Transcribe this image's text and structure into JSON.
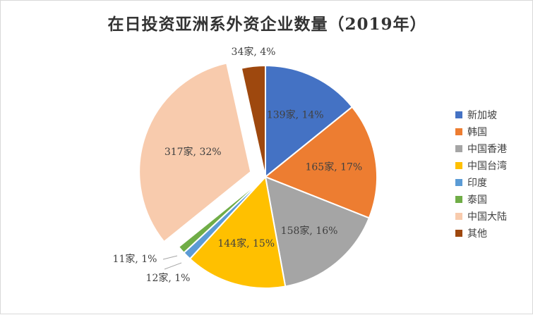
{
  "chart_data": {
    "type": "pie",
    "title": "在日投资亚洲系外资企业数量（2019年）",
    "slices": [
      {
        "name": "新加坡",
        "value": 139,
        "percent": 14,
        "label": "139家, 14%",
        "color": "#4472C4"
      },
      {
        "name": "韩国",
        "value": 165,
        "percent": 17,
        "label": "165家, 17%",
        "color": "#ED7D31"
      },
      {
        "name": "中国香港",
        "value": 158,
        "percent": 16,
        "label": "158家, 16%",
        "color": "#A5A5A5"
      },
      {
        "name": "中国台湾",
        "value": 144,
        "percent": 15,
        "label": "144家, 15%",
        "color": "#FFC000"
      },
      {
        "name": "印度",
        "value": 12,
        "percent": 1,
        "label": "12家, 1%",
        "color": "#5B9BD5"
      },
      {
        "name": "泰国",
        "value": 11,
        "percent": 1,
        "label": "11家, 1%",
        "color": "#70AD47"
      },
      {
        "name": "中国大陆",
        "value": 317,
        "percent": 32,
        "label": "317家, 32%",
        "color": "#F8CBAD",
        "exploded": true
      },
      {
        "name": "其他",
        "value": 34,
        "percent": 4,
        "label": "34家, 4%",
        "color": "#9E480E"
      }
    ],
    "start_angle": "12 o'clock",
    "direction": "clockwise",
    "legend_position": "right"
  }
}
